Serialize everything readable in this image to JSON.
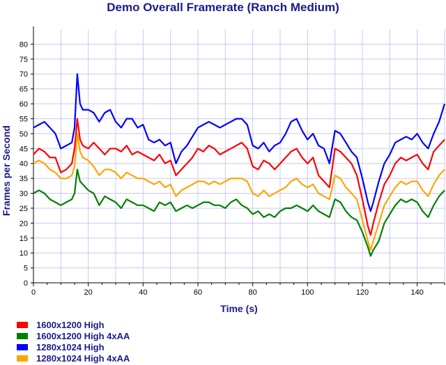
{
  "chart_data": {
    "type": "line",
    "title": "Demo Overall Framerate (Ranch Medium)",
    "xlabel": "Time (s)",
    "ylabel": "Frames per Second",
    "xlim": [
      0,
      150
    ],
    "ylim": [
      0,
      85
    ],
    "x_ticks": [
      0,
      20,
      40,
      60,
      80,
      100,
      120,
      140
    ],
    "y_ticks": [
      0,
      5,
      10,
      15,
      20,
      25,
      30,
      35,
      40,
      45,
      50,
      55,
      60,
      65,
      70,
      75,
      80
    ],
    "grid": true,
    "legend_position": "bottom-left",
    "x": [
      0,
      2,
      4,
      6,
      8,
      10,
      12,
      14,
      15,
      16,
      17,
      18,
      20,
      22,
      24,
      26,
      28,
      30,
      32,
      34,
      36,
      38,
      40,
      42,
      44,
      46,
      48,
      50,
      52,
      54,
      56,
      58,
      60,
      62,
      64,
      66,
      68,
      70,
      72,
      74,
      76,
      78,
      80,
      82,
      84,
      86,
      88,
      90,
      92,
      94,
      96,
      98,
      100,
      102,
      104,
      106,
      108,
      110,
      112,
      114,
      116,
      118,
      120,
      122,
      123,
      124,
      126,
      128,
      130,
      132,
      134,
      136,
      138,
      140,
      142,
      144,
      146,
      148,
      150
    ],
    "series": [
      {
        "name": "1600x1200 High",
        "color": "#ff0000",
        "values": [
          43,
          45,
          44,
          42,
          42,
          37,
          38,
          40,
          45,
          55,
          48,
          46,
          45,
          47,
          45,
          43,
          45,
          45,
          44,
          46,
          43,
          44,
          43,
          42,
          41,
          43,
          40,
          41,
          36,
          38,
          40,
          42,
          45,
          44,
          46,
          45,
          43,
          44,
          45,
          46,
          47,
          45,
          39,
          38,
          41,
          40,
          38,
          40,
          42,
          44,
          45,
          42,
          40,
          42,
          36,
          34,
          32,
          45,
          44,
          42,
          40,
          36,
          28,
          19,
          16,
          20,
          27,
          33,
          36,
          40,
          42,
          41,
          42,
          43,
          40,
          38,
          44,
          46,
          48
        ]
      },
      {
        "name": "1600x1200 High 4xAA",
        "color": "#008000",
        "values": [
          30,
          31,
          30,
          28,
          27,
          26,
          27,
          28,
          30,
          38,
          34,
          33,
          31,
          30,
          26,
          29,
          28,
          27,
          25,
          28,
          27,
          26,
          26,
          25,
          24,
          27,
          26,
          27,
          24,
          25,
          26,
          25,
          26,
          27,
          27,
          26,
          26,
          25,
          27,
          28,
          26,
          25,
          23,
          24,
          22,
          23,
          22,
          24,
          25,
          25,
          26,
          25,
          24,
          26,
          24,
          23,
          22,
          28,
          27,
          24,
          22,
          21,
          17,
          12,
          9,
          11,
          14,
          20,
          23,
          26,
          28,
          27,
          28,
          27,
          24,
          22,
          26,
          29,
          31
        ]
      },
      {
        "name": "1280x1024 High",
        "color": "#0000ff",
        "values": [
          52,
          53,
          54,
          52,
          50,
          45,
          46,
          47,
          52,
          70,
          60,
          58,
          58,
          57,
          54,
          57,
          58,
          54,
          52,
          55,
          55,
          52,
          53,
          48,
          47,
          48,
          46,
          47,
          40,
          44,
          46,
          49,
          52,
          53,
          54,
          53,
          52,
          53,
          54,
          55,
          55,
          53,
          46,
          45,
          47,
          44,
          46,
          47,
          50,
          54,
          55,
          51,
          48,
          50,
          46,
          45,
          40,
          51,
          50,
          47,
          44,
          42,
          35,
          27,
          24,
          27,
          34,
          40,
          43,
          47,
          48,
          49,
          48,
          50,
          47,
          45,
          50,
          54,
          60
        ]
      },
      {
        "name": "1280x1024 High 4xAA",
        "color": "#ffa500",
        "values": [
          40,
          41,
          40,
          38,
          37,
          35,
          35,
          36,
          39,
          50,
          44,
          42,
          41,
          39,
          36,
          38,
          38,
          37,
          35,
          37,
          36,
          35,
          35,
          34,
          33,
          34,
          32,
          33,
          29,
          31,
          32,
          33,
          34,
          34,
          33,
          34,
          33,
          34,
          35,
          35,
          35,
          34,
          30,
          29,
          31,
          29,
          30,
          31,
          32,
          34,
          35,
          33,
          32,
          33,
          30,
          29,
          28,
          36,
          35,
          32,
          30,
          28,
          21,
          14,
          11,
          14,
          20,
          26,
          29,
          32,
          34,
          33,
          34,
          34,
          31,
          29,
          33,
          36,
          38
        ]
      }
    ]
  }
}
